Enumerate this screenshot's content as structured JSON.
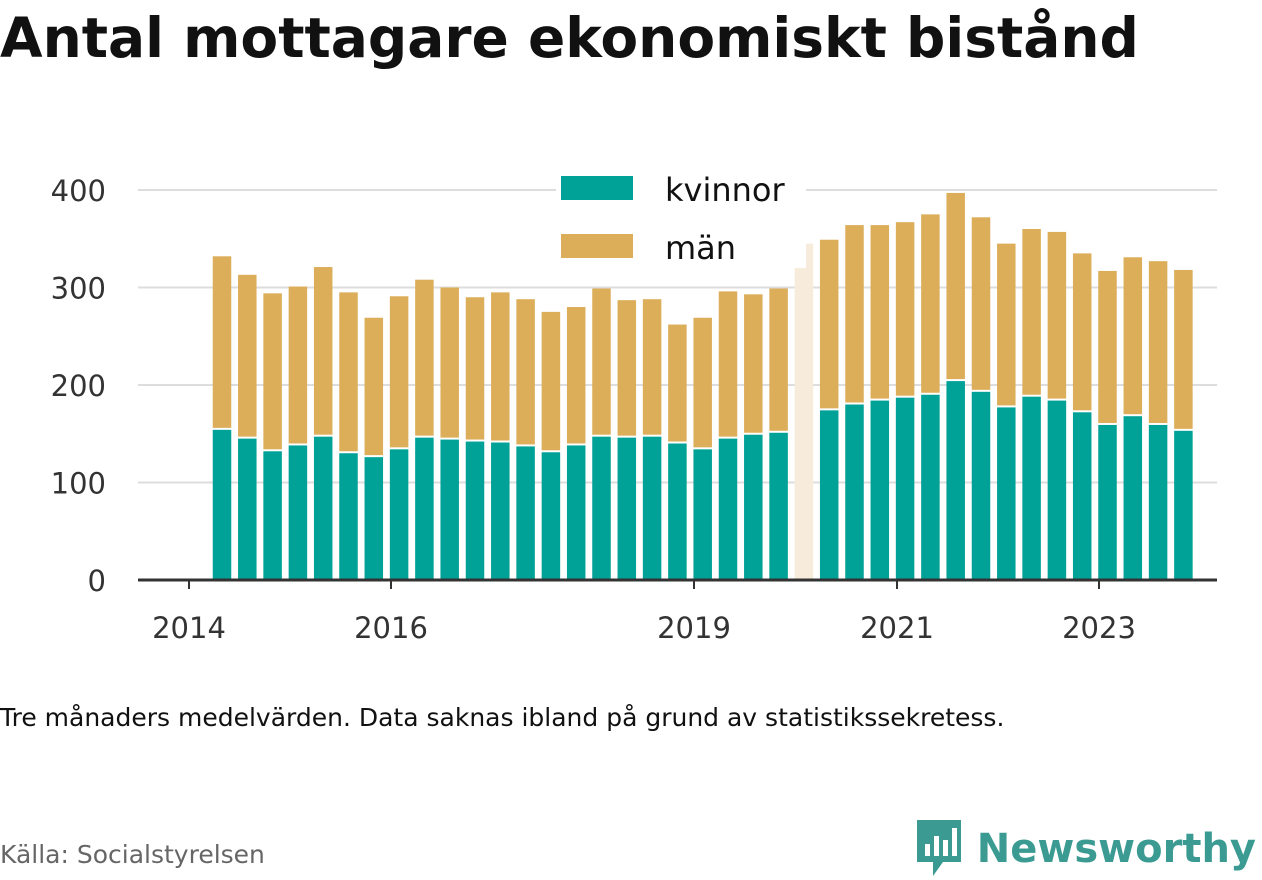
{
  "title": "Antal mottagare ekonomiskt bistånd",
  "note": "Tre månaders medelvärden. Data saknas ibland på grund av statistikssekretess.",
  "source": "Källa: Socialstyrelsen",
  "brand": {
    "name": "Newsworthy",
    "icon": "bar-chart-icon",
    "color": "#3b9b93"
  },
  "colors": {
    "kvinnor": "#00a196",
    "man": "#dcae5a",
    "missing": "#f7ebdc",
    "grid": "#dddddd",
    "axis": "#333333"
  },
  "chart_data": {
    "type": "bar",
    "stacked": true,
    "ylim": [
      0,
      400
    ],
    "yticks": [
      0,
      100,
      200,
      300,
      400
    ],
    "xticks": [
      "2014",
      "2016",
      "2019",
      "2021",
      "2023"
    ],
    "grid": true,
    "legend_position": "top-center",
    "series": [
      {
        "name": "kvinnor",
        "values": [
          154,
          145,
          132,
          138,
          147,
          130,
          126,
          134,
          146,
          144,
          142,
          141,
          137,
          131,
          138,
          147,
          146,
          147,
          140,
          134,
          145,
          149,
          151,
          null,
          174,
          180,
          184,
          187,
          190,
          204,
          193,
          177,
          188,
          184,
          172,
          159,
          168,
          159,
          153
        ]
      },
      {
        "name": "män",
        "values": [
          178,
          168,
          162,
          163,
          174,
          165,
          143,
          157,
          162,
          156,
          148,
          154,
          151,
          144,
          142,
          152,
          141,
          141,
          122,
          135,
          151,
          144,
          148,
          null,
          175,
          184,
          180,
          180,
          185,
          193,
          179,
          168,
          172,
          173,
          163,
          158,
          163,
          168,
          165
        ]
      }
    ],
    "missing_total": {
      "index": 23,
      "value": 345
    }
  }
}
